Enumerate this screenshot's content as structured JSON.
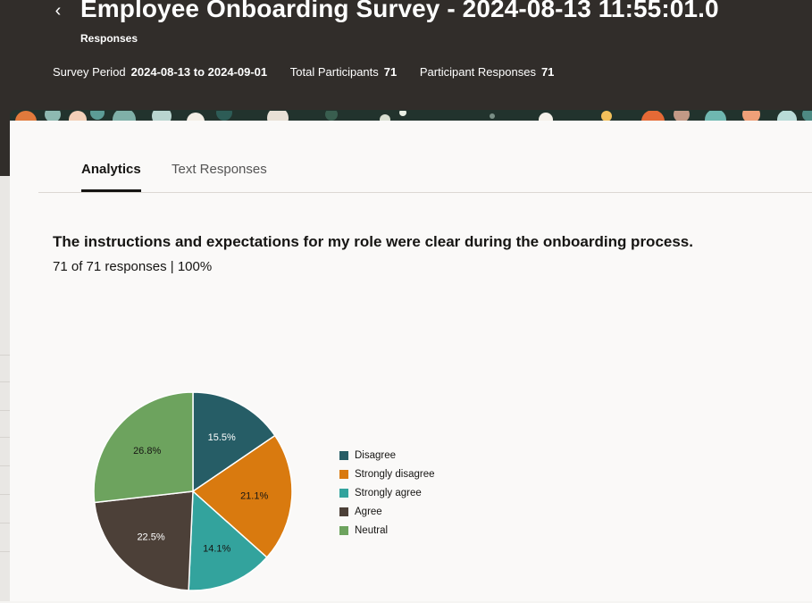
{
  "header": {
    "back_icon": "chevron-left-icon",
    "title": "Employee Onboarding Survey - 2024-08-13 11:55:01.0",
    "subtitle": "Responses",
    "meta": [
      {
        "label": "Survey Period",
        "value": "2024-08-13 to 2024-09-01"
      },
      {
        "label": "Total Participants",
        "value": "71"
      },
      {
        "label": "Participant Responses",
        "value": "71"
      }
    ]
  },
  "tabs": [
    {
      "label": "Analytics",
      "active": true
    },
    {
      "label": "Text Responses",
      "active": false
    }
  ],
  "question": {
    "text": "The instructions and expectations for my role were clear during the onboarding process.",
    "responses": "71 of 71 responses | 100%"
  },
  "chart_data": {
    "type": "pie",
    "slices": [
      {
        "label": "Disagree",
        "value": 15.5,
        "text": "15.5%",
        "color": "#265d66"
      },
      {
        "label": "Strongly disagree",
        "value": 21.1,
        "text": "21.1%",
        "color": "#d97a0f"
      },
      {
        "label": "Strongly agree",
        "value": 14.1,
        "text": "14.1%",
        "color": "#33a39d"
      },
      {
        "label": "Agree",
        "value": 22.5,
        "text": "22.5%",
        "color": "#4c4038"
      },
      {
        "label": "Neutral",
        "value": 26.8,
        "text": "26.8%",
        "color": "#6da35e"
      }
    ],
    "legend_position": "right"
  }
}
